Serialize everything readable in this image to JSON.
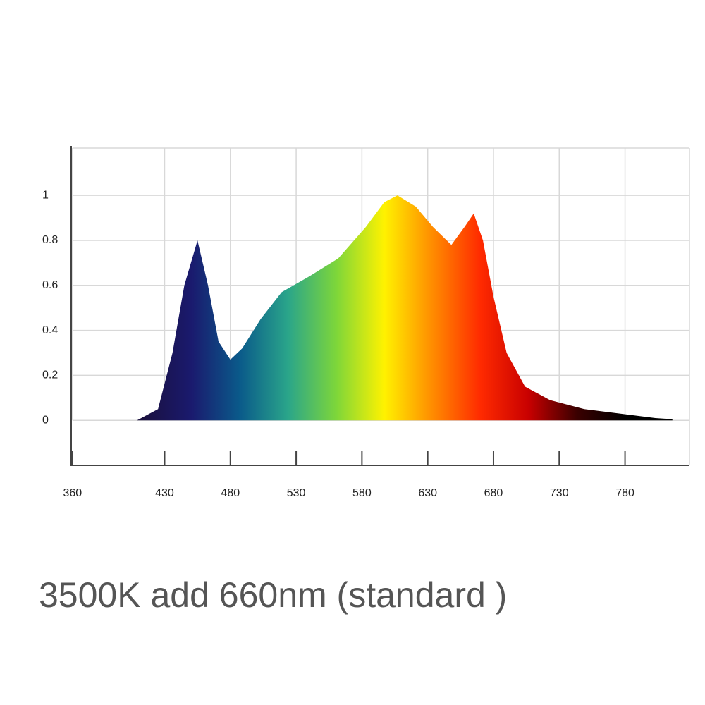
{
  "chart_data": {
    "type": "area",
    "title": "3500K add 660nm (standard )",
    "x": [
      409,
      425,
      436,
      445,
      455,
      463,
      471,
      480,
      489,
      503,
      519,
      540,
      562,
      583,
      597,
      607,
      621,
      634,
      648,
      658,
      665,
      672,
      680,
      690,
      704,
      723,
      749,
      776,
      803,
      816
    ],
    "series": [
      {
        "values": [
          0,
          0.05,
          0.3,
          0.6,
          0.8,
          0.6,
          0.35,
          0.27,
          0.32,
          0.45,
          0.57,
          0.64,
          0.72,
          0.86,
          0.97,
          1.0,
          0.95,
          0.86,
          0.78,
          0.86,
          0.92,
          0.8,
          0.55,
          0.3,
          0.15,
          0.09,
          0.05,
          0.03,
          0.01,
          0.005
        ]
      }
    ],
    "gradient_colors": [
      "#1a1040",
      "#1a1a6e",
      "#0a5a8a",
      "#2aa58a",
      "#7dd63a",
      "#fff200",
      "#ff8c00",
      "#ff2a00",
      "#c80000",
      "#3a0000",
      "#000000"
    ],
    "xlim": [
      359,
      829
    ],
    "xticks": [
      360,
      430,
      480,
      530,
      580,
      630,
      680,
      730,
      780
    ],
    "ylim": [
      -0.2,
      1.22
    ],
    "yticks": [
      0,
      0.2,
      0.4,
      0.6,
      0.8,
      1
    ],
    "grid": true
  }
}
